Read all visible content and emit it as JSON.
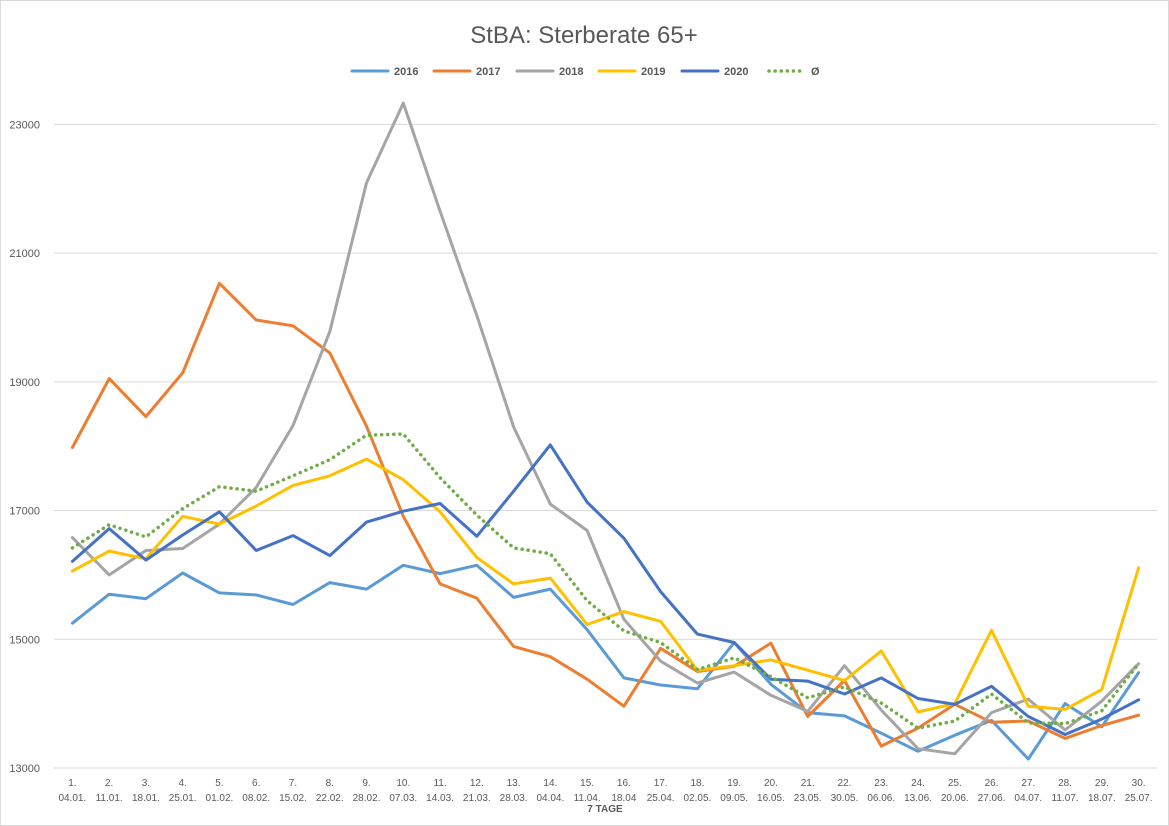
{
  "chart_data": {
    "type": "line",
    "title": "StBA: Sterberate 65+",
    "xlabel": "7 TAGE",
    "ylabel": "",
    "ylim": [
      13000,
      24000
    ],
    "yticks": [
      13000,
      15000,
      17000,
      19000,
      21000,
      23000
    ],
    "ytick_labels": [
      "13000",
      "15000",
      "17000",
      "19000",
      "21000",
      "23000"
    ],
    "grid": true,
    "legend_position": "top",
    "categories": [
      [
        "1.",
        "04.01."
      ],
      [
        "2.",
        "11.01."
      ],
      [
        "3.",
        "18.01."
      ],
      [
        "4.",
        "25.01."
      ],
      [
        "5.",
        "01.02."
      ],
      [
        "6.",
        "08.02."
      ],
      [
        "7.",
        "15.02."
      ],
      [
        "8.",
        "22.02."
      ],
      [
        "9.",
        "28.02."
      ],
      [
        "10.",
        "07.03."
      ],
      [
        "11.",
        "14.03."
      ],
      [
        "12.",
        "21.03."
      ],
      [
        "13.",
        "28.03."
      ],
      [
        "14.",
        "04.04."
      ],
      [
        "15.",
        "11.04."
      ],
      [
        "16.",
        "18.04"
      ],
      [
        "17.",
        "25.04."
      ],
      [
        "18.",
        "02.05."
      ],
      [
        "19.",
        "09.05."
      ],
      [
        "20.",
        "16.05."
      ],
      [
        "21.",
        "23.05."
      ],
      [
        "22.",
        "30.05."
      ],
      [
        "23.",
        "06.06."
      ],
      [
        "24.",
        "13.06."
      ],
      [
        "25.",
        "20.06."
      ],
      [
        "26.",
        "27.06."
      ],
      [
        "27.",
        "04.07."
      ],
      [
        "28.",
        "11.07."
      ],
      [
        "29.",
        "18.07."
      ],
      [
        "30.",
        "25.07."
      ]
    ],
    "series": [
      {
        "name": "2016",
        "color": "#5b9bd5",
        "dashed": false,
        "values": [
          15250,
          15700,
          15630,
          16030,
          15720,
          15690,
          15540,
          15880,
          15780,
          16150,
          16020,
          16150,
          15650,
          15780,
          15150,
          14400,
          14290,
          14230,
          14950,
          14300,
          13860,
          13810,
          13540,
          13260,
          13510,
          13740,
          13140,
          14000,
          13640,
          14480
        ]
      },
      {
        "name": "2017",
        "color": "#ed7d31",
        "dashed": false,
        "values": [
          17980,
          19050,
          18460,
          19140,
          20530,
          19960,
          19870,
          19450,
          18310,
          16910,
          15860,
          15640,
          14890,
          14730,
          14380,
          13960,
          14860,
          14500,
          14580,
          14940,
          13800,
          14360,
          13340,
          13620,
          13990,
          13710,
          13730,
          13460,
          13660,
          13820
        ]
      },
      {
        "name": "2018",
        "color": "#a5a5a5",
        "dashed": false,
        "values": [
          16580,
          16000,
          16380,
          16410,
          16790,
          17360,
          18320,
          19780,
          22090,
          23330,
          21650,
          20030,
          18300,
          17100,
          16690,
          15310,
          14660,
          14320,
          14490,
          14130,
          13880,
          14590,
          13900,
          13300,
          13220,
          13860,
          14070,
          13590,
          14040,
          14620
        ]
      },
      {
        "name": "2019",
        "color": "#ffc000",
        "dashed": false,
        "values": [
          16060,
          16370,
          16250,
          16910,
          16790,
          17070,
          17390,
          17540,
          17800,
          17480,
          16980,
          16270,
          15860,
          15950,
          15230,
          15430,
          15280,
          14520,
          14590,
          14680,
          14520,
          14360,
          14820,
          13870,
          14000,
          15140,
          13960,
          13910,
          14220,
          16110
        ]
      },
      {
        "name": "2020",
        "color": "#4472c4",
        "dashed": false,
        "values": [
          16210,
          16720,
          16230,
          16620,
          16980,
          16380,
          16610,
          16300,
          16820,
          16990,
          17110,
          16600,
          17300,
          18020,
          17130,
          16570,
          15740,
          15080,
          14950,
          14380,
          14350,
          14150,
          14400,
          14080,
          13990,
          14270,
          13800,
          13520,
          13760,
          14060
        ]
      },
      {
        "name": "Ø",
        "color": "#70ad47",
        "dashed": true,
        "values": [
          16420,
          16780,
          16590,
          17030,
          17370,
          17300,
          17540,
          17790,
          18170,
          18190,
          17510,
          16930,
          16420,
          16330,
          15600,
          15130,
          14950,
          14530,
          14710,
          14420,
          14090,
          14260,
          14010,
          13620,
          13730,
          14150,
          13700,
          13690,
          13890,
          14620
        ]
      }
    ]
  }
}
